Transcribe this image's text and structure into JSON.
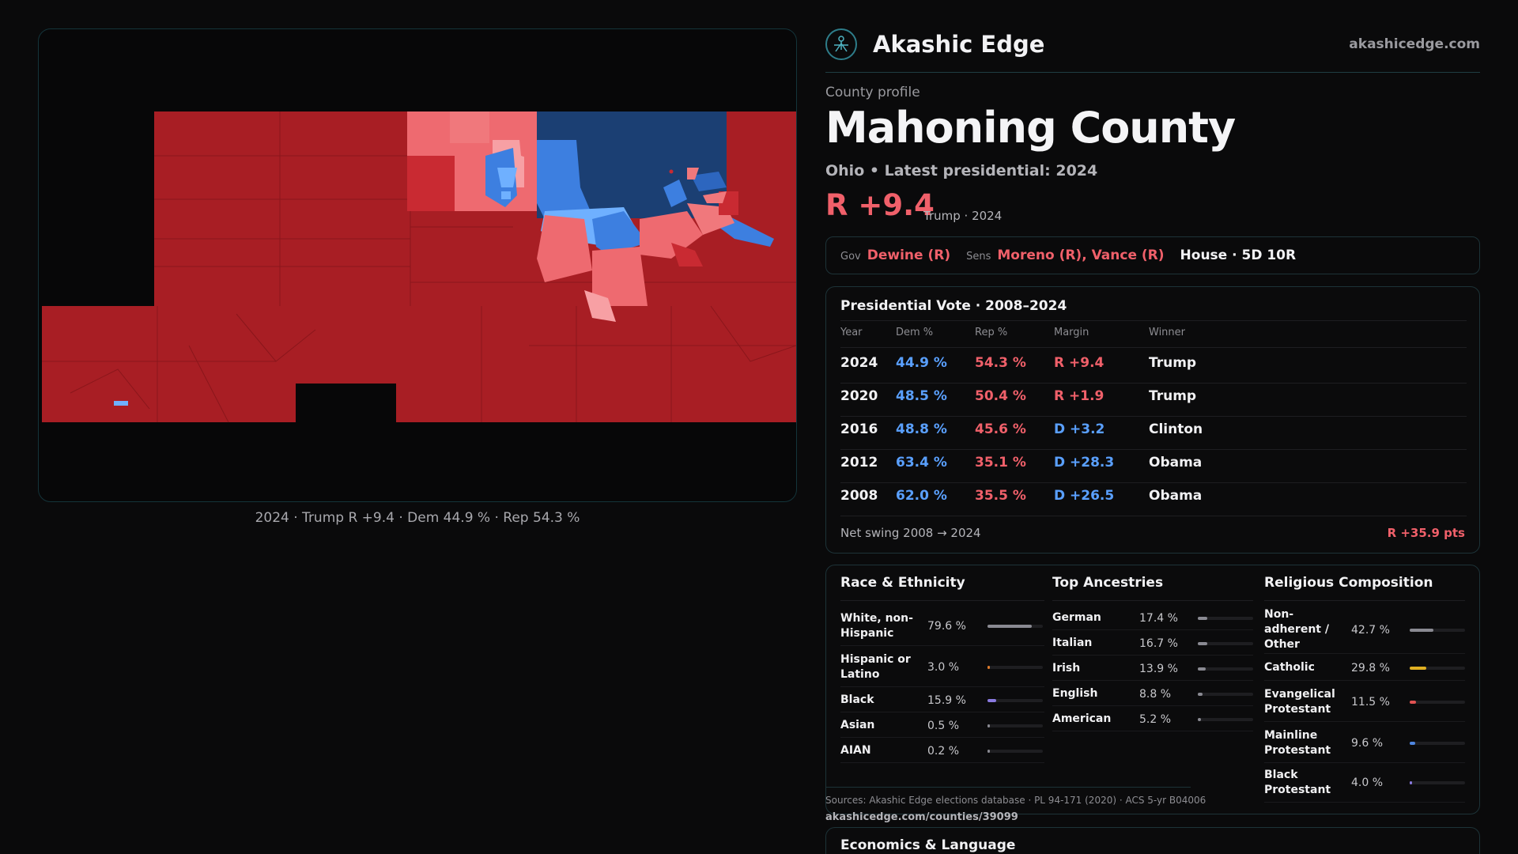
{
  "brand": {
    "name": "Akashic Edge",
    "url": "akashicedge.com"
  },
  "profile": {
    "eyebrow": "County profile",
    "title": "Mahoning County",
    "subtitle": "Ohio • Latest presidential: 2024",
    "margin": "R +9.4",
    "margin_note": "Trump · 2024"
  },
  "officials": {
    "gov_label": "Gov",
    "gov": "Dewine (R)",
    "sens_label": "Sens",
    "sens": "Moreno (R), Vance (R)",
    "house": "House · 5D 10R"
  },
  "map": {
    "caption": "2024 · Trump R +9.4 · Dem 44.9 % · Rep 54.3 %",
    "colors": {
      "rep_dark": "#a81e24",
      "rep_mid": "#c92a32",
      "rep_light": "#ee6a70",
      "rep_pale": "#f7a0a4",
      "dem_dark": "#1b3f73",
      "dem_mid": "#3d7fe0",
      "dem_light": "#6fb0ff"
    }
  },
  "presidential": {
    "title": "Presidential Vote · 2008–2024",
    "headers": [
      "Year",
      "Dem %",
      "Rep %",
      "Margin",
      "Winner"
    ],
    "rows": [
      {
        "year": "2024",
        "dem": "44.9 %",
        "rep": "54.3 %",
        "margin": "R +9.4",
        "party": "R",
        "winner": "Trump"
      },
      {
        "year": "2020",
        "dem": "48.5 %",
        "rep": "50.4 %",
        "margin": "R +1.9",
        "party": "R",
        "winner": "Trump"
      },
      {
        "year": "2016",
        "dem": "48.8 %",
        "rep": "45.6 %",
        "margin": "D +3.2",
        "party": "D",
        "winner": "Clinton"
      },
      {
        "year": "2012",
        "dem": "63.4 %",
        "rep": "35.1 %",
        "margin": "D +28.3",
        "party": "D",
        "winner": "Obama"
      },
      {
        "year": "2008",
        "dem": "62.0 %",
        "rep": "35.5 %",
        "margin": "D +26.5",
        "party": "D",
        "winner": "Obama"
      }
    ],
    "swing_label": "Net swing 2008 → 2024",
    "swing_value": "R +35.9 pts"
  },
  "demographics": {
    "race": {
      "title": "Race & Ethnicity",
      "items": [
        {
          "name": "White, non-Hispanic",
          "pct": "79.6 %",
          "value": 0.796,
          "color": "#8a8a92"
        },
        {
          "name": "Hispanic or Latino",
          "pct": "3.0 %",
          "value": 0.03,
          "color": "#e07b2a"
        },
        {
          "name": "Black",
          "pct": "15.9 %",
          "value": 0.159,
          "color": "#8a7ae0"
        },
        {
          "name": "Asian",
          "pct": "0.5 %",
          "value": 0.005,
          "color": "#8a8a92"
        },
        {
          "name": "AIAN",
          "pct": "0.2 %",
          "value": 0.002,
          "color": "#8a8a92"
        }
      ]
    },
    "ancestry": {
      "title": "Top Ancestries",
      "items": [
        {
          "name": "German",
          "pct": "17.4 %",
          "value": 0.174,
          "color": "#8a8a92"
        },
        {
          "name": "Italian",
          "pct": "16.7 %",
          "value": 0.167,
          "color": "#8a8a92"
        },
        {
          "name": "Irish",
          "pct": "13.9 %",
          "value": 0.139,
          "color": "#8a8a92"
        },
        {
          "name": "English",
          "pct": "8.8 %",
          "value": 0.088,
          "color": "#8a8a92"
        },
        {
          "name": "American",
          "pct": "5.2 %",
          "value": 0.052,
          "color": "#8a8a92"
        }
      ]
    },
    "religion": {
      "title": "Religious Composition",
      "items": [
        {
          "name": "Non-adherent / Other",
          "pct": "42.7 %",
          "value": 0.427,
          "color": "#8a8a92"
        },
        {
          "name": "Catholic",
          "pct": "29.8 %",
          "value": 0.298,
          "color": "#e0b022"
        },
        {
          "name": "Evangelical Protestant",
          "pct": "11.5 %",
          "value": 0.115,
          "color": "#e05252"
        },
        {
          "name": "Mainline Protestant",
          "pct": "9.6 %",
          "value": 0.096,
          "color": "#4f86e0"
        },
        {
          "name": "Black Protestant",
          "pct": "4.0 %",
          "value": 0.04,
          "color": "#8a7ae0"
        }
      ]
    }
  },
  "sources": {
    "text": "Sources: Akashic Edge elections database · PL 94-171 (2020) · ACS 5-yr B04006",
    "url": "akashicedge.com/counties/39099"
  },
  "economics": {
    "title": "Economics & Language"
  }
}
